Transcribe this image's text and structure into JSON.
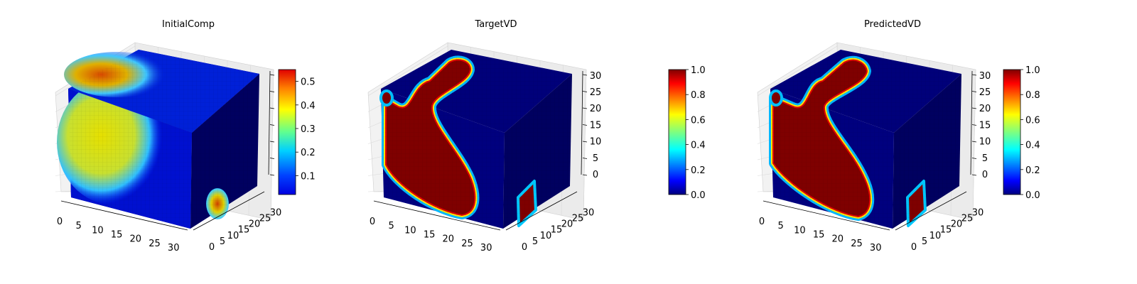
{
  "chart_data": [
    {
      "type": "voxel-3d",
      "title": "InitialComp",
      "x_ticks": [
        "0",
        "5",
        "10",
        "15",
        "20",
        "25",
        "30"
      ],
      "y_ticks": [
        "0",
        "5",
        "10",
        "15",
        "20",
        "25",
        "30"
      ],
      "z_ticks": [],
      "colormap": "jet",
      "colorbar": {
        "range": [
          0.02,
          0.55
        ],
        "ticks": [
          "0.1",
          "0.2",
          "0.3",
          "0.4",
          "0.5"
        ],
        "tick_values": [
          0.1,
          0.2,
          0.3,
          0.4,
          0.5
        ]
      }
    },
    {
      "type": "voxel-3d",
      "title": "TargetVD",
      "x_ticks": [
        "0",
        "5",
        "10",
        "15",
        "20",
        "25",
        "30"
      ],
      "y_ticks": [
        "0",
        "5",
        "10",
        "15",
        "20",
        "25",
        "30"
      ],
      "z_ticks": [
        "0",
        "5",
        "10",
        "15",
        "20",
        "25",
        "30"
      ],
      "colormap": "jet",
      "colorbar": {
        "range": [
          0.0,
          1.0
        ],
        "ticks": [
          "0.0",
          "0.2",
          "0.4",
          "0.6",
          "0.8",
          "1.0"
        ],
        "tick_values": [
          0.0,
          0.2,
          0.4,
          0.6,
          0.8,
          1.0
        ]
      }
    },
    {
      "type": "voxel-3d",
      "title": "PredictedVD",
      "x_ticks": [
        "0",
        "5",
        "10",
        "15",
        "20",
        "25",
        "30"
      ],
      "y_ticks": [
        "0",
        "5",
        "10",
        "15",
        "20",
        "25",
        "30"
      ],
      "z_ticks": [
        "0",
        "5",
        "10",
        "15",
        "20",
        "25",
        "30"
      ],
      "colormap": "jet",
      "colorbar": {
        "range": [
          0.0,
          1.0
        ],
        "ticks": [
          "0.0",
          "0.2",
          "0.4",
          "0.6",
          "0.8",
          "1.0"
        ],
        "tick_values": [
          0.0,
          0.2,
          0.4,
          0.6,
          0.8,
          1.0
        ]
      }
    }
  ],
  "colors": {
    "jet_dark_blue": "#00007f",
    "jet_blue": "#0000ff",
    "jet_cyan": "#00ffff",
    "jet_yellow": "#ffff00",
    "jet_red": "#ff0000",
    "jet_dark_red": "#7f0000",
    "pane_fill": "#f2f2f2",
    "grid": "#d9d9d9"
  }
}
